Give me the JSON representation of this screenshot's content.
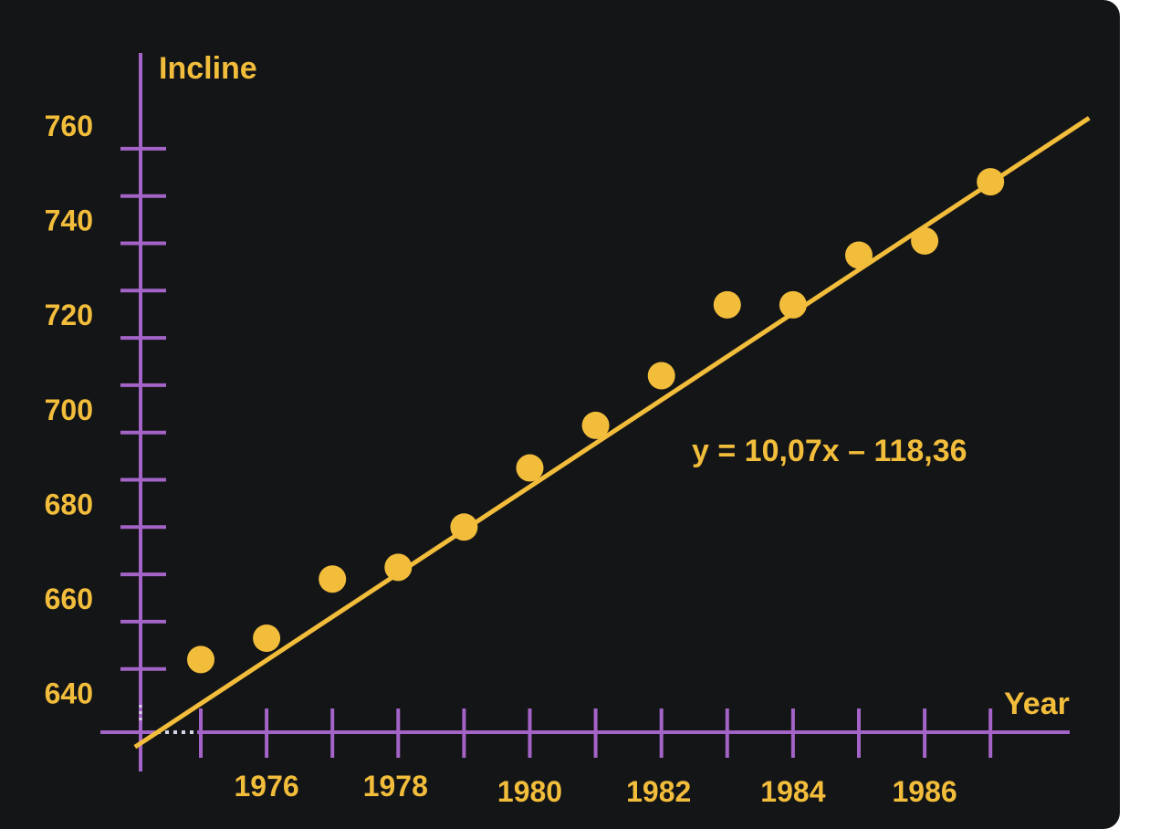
{
  "chart_data": {
    "type": "scatter",
    "title": "",
    "xlabel": "Year",
    "ylabel": "Incline",
    "x_tick_labels": [
      "1976",
      "1978",
      "1980",
      "1982",
      "1984",
      "1986"
    ],
    "y_tick_labels": [
      "640",
      "660",
      "680",
      "700",
      "720",
      "740",
      "760"
    ],
    "x_ticks": [
      1976,
      1978,
      1980,
      1982,
      1984,
      1986
    ],
    "y_ticks": [
      640,
      660,
      680,
      700,
      720,
      740,
      760
    ],
    "points": [
      {
        "x": 1975,
        "y": 647
      },
      {
        "x": 1976,
        "y": 651.5
      },
      {
        "x": 1977,
        "y": 664
      },
      {
        "x": 1978,
        "y": 666.5
      },
      {
        "x": 1979,
        "y": 675
      },
      {
        "x": 1980,
        "y": 687.5
      },
      {
        "x": 1981,
        "y": 696.5
      },
      {
        "x": 1982,
        "y": 707
      },
      {
        "x": 1983,
        "y": 722
      },
      {
        "x": 1984,
        "y": 722
      },
      {
        "x": 1985,
        "y": 732.5
      },
      {
        "x": 1986,
        "y": 735.5
      },
      {
        "x": 1987,
        "y": 748
      }
    ],
    "trendline": {
      "equation": "y = 10,07x – 118,36",
      "x_range": [
        1974,
        1988.5
      ],
      "y_range": [
        628.5,
        761.5
      ]
    },
    "colors": {
      "background": "#141517",
      "axis": "#a463c6",
      "data": "#f2bd3b"
    },
    "grid": false
  }
}
